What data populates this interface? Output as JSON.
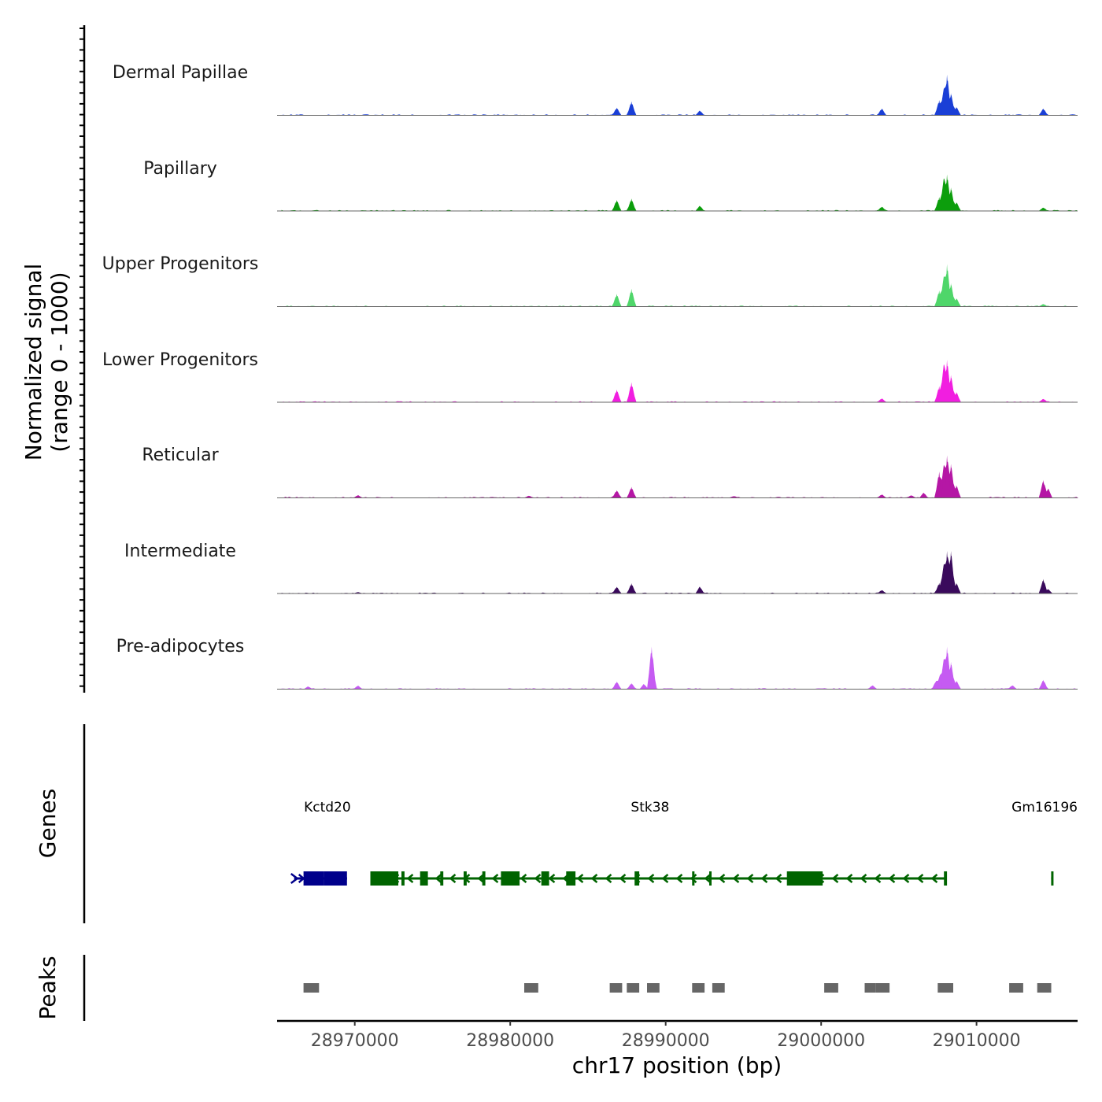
{
  "chart_data": {
    "type": "area",
    "chromosome": "chr17",
    "xlabel": "chr17 position (bp)",
    "ylabel_line1": "Normalized signal",
    "ylabel_line2": "(range 0 - 1000)",
    "genes_label": "Genes",
    "peaks_label": "Peaks",
    "xlim": [
      28965000,
      29016500
    ],
    "ylim": [
      0,
      1000
    ],
    "x_ticks": [
      28970000,
      28980000,
      28990000,
      29000000,
      29010000
    ],
    "x_tick_labels": [
      "28970000",
      "28980000",
      "28990000",
      "29000000",
      "29010000"
    ],
    "series": [
      {
        "name": "Dermal Papillae",
        "color": "#1a3fd6",
        "peaks": [
          {
            "x": 28986850,
            "y": 180
          },
          {
            "x": 28987800,
            "y": 330
          },
          {
            "x": 28992200,
            "y": 110
          },
          {
            "x": 29003900,
            "y": 160
          },
          {
            "x": 29007600,
            "y": 360
          },
          {
            "x": 29007900,
            "y": 620
          },
          {
            "x": 29008100,
            "y": 960
          },
          {
            "x": 29008350,
            "y": 520
          },
          {
            "x": 29008700,
            "y": 200
          },
          {
            "x": 29014300,
            "y": 160
          }
        ]
      },
      {
        "name": "Papillary",
        "color": "#0c9e0c",
        "peaks": [
          {
            "x": 28986850,
            "y": 260
          },
          {
            "x": 28987800,
            "y": 290
          },
          {
            "x": 28992200,
            "y": 120
          },
          {
            "x": 29003900,
            "y": 100
          },
          {
            "x": 29007600,
            "y": 330
          },
          {
            "x": 29007900,
            "y": 760
          },
          {
            "x": 29008100,
            "y": 860
          },
          {
            "x": 29008350,
            "y": 550
          },
          {
            "x": 29008700,
            "y": 210
          },
          {
            "x": 29014300,
            "y": 80
          }
        ]
      },
      {
        "name": "Upper Progenitors",
        "color": "#4fd66a",
        "peaks": [
          {
            "x": 28986850,
            "y": 300
          },
          {
            "x": 28987800,
            "y": 420
          },
          {
            "x": 29007600,
            "y": 380
          },
          {
            "x": 29007900,
            "y": 700
          },
          {
            "x": 29008100,
            "y": 1000
          },
          {
            "x": 29008350,
            "y": 550
          },
          {
            "x": 29008700,
            "y": 200
          },
          {
            "x": 29014300,
            "y": 60
          }
        ]
      },
      {
        "name": "Lower Progenitors",
        "color": "#f11ee0",
        "peaks": [
          {
            "x": 28986850,
            "y": 300
          },
          {
            "x": 28987800,
            "y": 470
          },
          {
            "x": 29003900,
            "y": 90
          },
          {
            "x": 29007600,
            "y": 380
          },
          {
            "x": 29007900,
            "y": 880
          },
          {
            "x": 29008100,
            "y": 1000
          },
          {
            "x": 29008350,
            "y": 640
          },
          {
            "x": 29008700,
            "y": 240
          },
          {
            "x": 29014300,
            "y": 80
          }
        ]
      },
      {
        "name": "Reticular",
        "color": "#b517a5",
        "peaks": [
          {
            "x": 28970200,
            "y": 60
          },
          {
            "x": 28981200,
            "y": 50
          },
          {
            "x": 28986850,
            "y": 180
          },
          {
            "x": 28987800,
            "y": 260
          },
          {
            "x": 28994400,
            "y": 40
          },
          {
            "x": 29003900,
            "y": 80
          },
          {
            "x": 29005800,
            "y": 60
          },
          {
            "x": 29006600,
            "y": 120
          },
          {
            "x": 29007600,
            "y": 620
          },
          {
            "x": 29007900,
            "y": 760
          },
          {
            "x": 29008100,
            "y": 1000
          },
          {
            "x": 29008350,
            "y": 800
          },
          {
            "x": 29008700,
            "y": 300
          },
          {
            "x": 29014300,
            "y": 420
          },
          {
            "x": 29014600,
            "y": 220
          }
        ]
      },
      {
        "name": "Intermediate",
        "color": "#3a0a5c",
        "peaks": [
          {
            "x": 28970200,
            "y": 30
          },
          {
            "x": 28986850,
            "y": 160
          },
          {
            "x": 28987800,
            "y": 240
          },
          {
            "x": 28992200,
            "y": 160
          },
          {
            "x": 29003900,
            "y": 80
          },
          {
            "x": 29007600,
            "y": 250
          },
          {
            "x": 29007900,
            "y": 680
          },
          {
            "x": 29008100,
            "y": 1000
          },
          {
            "x": 29008350,
            "y": 1000
          },
          {
            "x": 29008700,
            "y": 250
          },
          {
            "x": 29014300,
            "y": 340
          },
          {
            "x": 29014600,
            "y": 100
          }
        ]
      },
      {
        "name": "Pre-adipocytes",
        "color": "#c55bf2",
        "peaks": [
          {
            "x": 28967000,
            "y": 60
          },
          {
            "x": 28970200,
            "y": 80
          },
          {
            "x": 28986850,
            "y": 180
          },
          {
            "x": 28987800,
            "y": 140
          },
          {
            "x": 28988600,
            "y": 120
          },
          {
            "x": 28989100,
            "y": 1000
          },
          {
            "x": 29003300,
            "y": 90
          },
          {
            "x": 29007400,
            "y": 200
          },
          {
            "x": 29007650,
            "y": 340
          },
          {
            "x": 29007900,
            "y": 700
          },
          {
            "x": 29008100,
            "y": 1000
          },
          {
            "x": 29008350,
            "y": 640
          },
          {
            "x": 29008700,
            "y": 200
          },
          {
            "x": 29012300,
            "y": 90
          },
          {
            "x": 29014300,
            "y": 220
          }
        ]
      }
    ],
    "genes": [
      {
        "name": "Kctd20",
        "strand": "+",
        "color": "#00008b",
        "start": 28966100,
        "end": 28969500,
        "label_x": 28969000,
        "exons": [
          [
            28966700,
            28968000
          ],
          [
            28968000,
            28969500
          ]
        ]
      },
      {
        "name": "Stk38",
        "strand": "-",
        "color": "#006400",
        "start": 28971000,
        "end": 29008000,
        "label_x": 28989000,
        "exons": [
          [
            28971000,
            28972800
          ],
          [
            28973000,
            28973200
          ],
          [
            28974200,
            28974700
          ],
          [
            28975500,
            28975700
          ],
          [
            28977000,
            28977200
          ],
          [
            28978200,
            28978400
          ],
          [
            28979400,
            28980600
          ],
          [
            28982000,
            28982500
          ],
          [
            28983600,
            28984200
          ],
          [
            28988000,
            28988300
          ],
          [
            28991700,
            28991800
          ],
          [
            28992800,
            28992900
          ],
          [
            28997800,
            29000100
          ],
          [
            29007900,
            29008100
          ]
        ]
      },
      {
        "name": "Gm16196",
        "strand": "-",
        "color": "#006400",
        "start": 29014800,
        "end": 29014900,
        "label_x": 29015000,
        "exons": [
          [
            29014800,
            29014900
          ]
        ]
      }
    ],
    "peak_regions": [
      [
        28966700,
        28967700
      ],
      [
        28980900,
        28981800
      ],
      [
        28986400,
        28987200
      ],
      [
        28987500,
        28988300
      ],
      [
        28988800,
        28989600
      ],
      [
        28991700,
        28992500
      ],
      [
        28993000,
        28993800
      ],
      [
        29000200,
        29001100
      ],
      [
        29002800,
        29003500
      ],
      [
        29003500,
        29004400
      ],
      [
        29007500,
        29008500
      ],
      [
        29012100,
        29013000
      ],
      [
        29013900,
        29014800
      ]
    ]
  }
}
